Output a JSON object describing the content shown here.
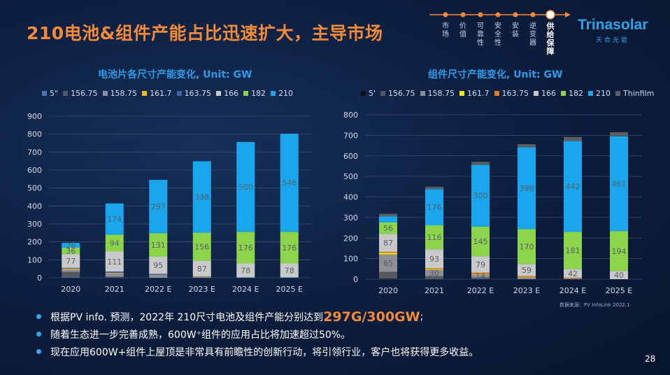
{
  "header": {
    "title": "210电池&组件产能占比迅速扩大，主导市场",
    "nav": [
      "市场",
      "价值",
      "可靠性",
      "安全性",
      "安装",
      "逆变器",
      "供给保障"
    ],
    "nav_active": 6,
    "logo_text": "Trinasolar",
    "logo_sub": "天合光能"
  },
  "colors": {
    "accent": "#f28a3a",
    "title_blue": "#2f9ae8",
    "bullet": "#36a6f2"
  },
  "chart_data": [
    {
      "type": "bar",
      "stacked": true,
      "title": "电池片各尺寸产能变化, Unit: GW",
      "categories": [
        "2020",
        "2021",
        "2022 E",
        "2023 E",
        "2024 E",
        "2025 E"
      ],
      "ylim": [
        0,
        900
      ],
      "ticks": [
        0,
        100,
        200,
        300,
        400,
        500,
        600,
        700,
        800,
        900
      ],
      "grid": true,
      "legend_position": "top",
      "series": [
        {
          "name": "5\"",
          "color": "#4f6fb6",
          "values": [
            2,
            0,
            0,
            0,
            0,
            0
          ]
        },
        {
          "name": "156.75",
          "color": "#55595f",
          "values": [
            30,
            6,
            0,
            0,
            0,
            0
          ]
        },
        {
          "name": "158.75",
          "color": "#8c8f93",
          "values": [
            13,
            18,
            15,
            5,
            0,
            0
          ]
        },
        {
          "name": "161.7",
          "color": "#f0b722",
          "values": [
            6,
            4,
            2,
            1,
            0,
            0
          ]
        },
        {
          "name": "163.75",
          "color": "#3e63b0",
          "values": [
            4,
            7,
            5,
            2,
            2,
            2
          ]
        },
        {
          "name": "166",
          "color": "#c9c9c9",
          "values": [
            77,
            111,
            95,
            87,
            78,
            78
          ]
        },
        {
          "name": "182",
          "color": "#8cd44a",
          "values": [
            36,
            94,
            131,
            156,
            176,
            176
          ]
        },
        {
          "name": "210",
          "color": "#19a6ec",
          "values": [
            26,
            174,
            297,
            398,
            500,
            546
          ]
        }
      ],
      "data_labels": [
        [
          "",
          "",
          "",
          "",
          "",
          "77",
          "36",
          "26"
        ],
        [
          "",
          "",
          "",
          "",
          "",
          "111",
          "94",
          "174"
        ],
        [
          "",
          "",
          "",
          "",
          "",
          "95",
          "131",
          "297"
        ],
        [
          "",
          "",
          "",
          "",
          "",
          "87",
          "156",
          "398"
        ],
        [
          "",
          "",
          "",
          "",
          "",
          "78",
          "176",
          "500"
        ],
        [
          "",
          "",
          "",
          "",
          "",
          "78",
          "176",
          "546"
        ]
      ]
    },
    {
      "type": "bar",
      "stacked": true,
      "title": "组件尺寸产能变化, Unit: GW",
      "categories": [
        "2020",
        "2021",
        "2022 E",
        "2023 E",
        "2024 E",
        "2025 E"
      ],
      "ylim": [
        0,
        800
      ],
      "ticks": [
        0,
        100,
        200,
        300,
        400,
        500,
        600,
        700,
        800
      ],
      "grid": true,
      "legend_position": "top",
      "series": [
        {
          "name": "5'",
          "color": "#111111",
          "values": [
            2,
            0,
            0,
            0,
            0,
            0
          ]
        },
        {
          "name": "156.75",
          "color": "#55595f",
          "values": [
            33,
            15,
            8,
            0,
            0,
            0
          ]
        },
        {
          "name": "158.75",
          "color": "#8c8f93",
          "values": [
            85,
            30,
            14,
            8,
            3,
            0
          ]
        },
        {
          "name": "161.7",
          "color": "#f5e60f",
          "values": [
            8,
            4,
            2,
            2,
            0,
            0
          ]
        },
        {
          "name": "163.75",
          "color": "#e0782a",
          "values": [
            5,
            4,
            8,
            5,
            4,
            0
          ]
        },
        {
          "name": "166",
          "color": "#c9c9c9",
          "values": [
            87,
            93,
            79,
            59,
            42,
            40
          ]
        },
        {
          "name": "182",
          "color": "#8cd44a",
          "values": [
            56,
            116,
            145,
            170,
            181,
            194
          ]
        },
        {
          "name": "210",
          "color": "#19a6ec",
          "values": [
            30,
            176,
            300,
            398,
            442,
            461
          ]
        },
        {
          "name": "Thinfilm",
          "color": "#5a5e63",
          "values": [
            12,
            12,
            15,
            15,
            20,
            20
          ]
        }
      ],
      "data_labels": [
        [
          "",
          "",
          "85",
          "",
          "",
          "87",
          "56",
          "",
          ""
        ],
        [
          "",
          "",
          "30",
          "",
          "",
          "93",
          "116",
          "176",
          ""
        ],
        [
          "",
          "",
          "14",
          "",
          "",
          "79",
          "145",
          "300",
          ""
        ],
        [
          "",
          "",
          "",
          "",
          "",
          "59",
          "170",
          "398",
          ""
        ],
        [
          "",
          "",
          "",
          "",
          "",
          "42",
          "181",
          "442",
          ""
        ],
        [
          "",
          "",
          "",
          "",
          "",
          "40",
          "194",
          "461",
          ""
        ]
      ]
    }
  ],
  "bullets": {
    "b1_pre": "根据PV info. 预测，2022年 210尺寸电池及组件产能分别达到",
    "b1_hl": "297G/300GW",
    "b1_post": ";",
    "b2": "随着生态进一步完善成熟，600W⁺组件的应用占比将加速超过50%。",
    "b3": "现在应用600W+组件上屋顶是非常具有前瞻性的创新行动，将引领行业，客户也将获得更多收益。"
  },
  "source": "数据来源：PV InfoLink 2022.1",
  "page_number": "28"
}
